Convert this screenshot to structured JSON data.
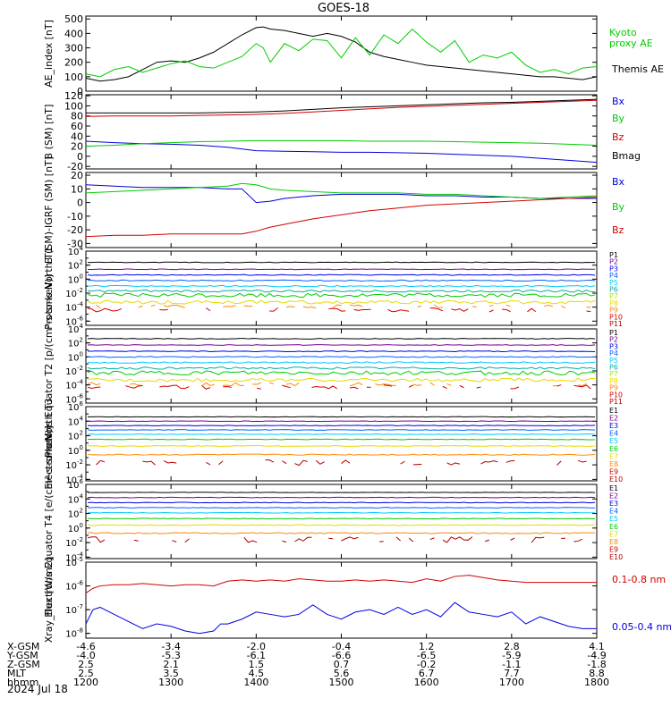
{
  "title": "GOES-18",
  "date_label": "2024 Jul 18",
  "ephemeris": {
    "rows": [
      {
        "label": "X-GSM",
        "values": [
          "-4.6",
          "-3.4",
          "-2.0",
          "-0.4",
          "1.2",
          "2.8",
          "4.1"
        ]
      },
      {
        "label": "Y-GSM",
        "values": [
          "-4.0",
          "-5.3",
          "-6.1",
          "-6.6",
          "-6.5",
          "-5.9",
          "-4.9"
        ]
      },
      {
        "label": "Z-GSM",
        "values": [
          "2.5",
          "2.1",
          "1.5",
          "0.7",
          "-0.2",
          "-1.1",
          "-1.8"
        ]
      },
      {
        "label": "MLT",
        "values": [
          "2.5",
          "3.5",
          "4.5",
          "5.6",
          "6.7",
          "7.7",
          "8.8"
        ]
      },
      {
        "label": "hhmm",
        "values": [
          "1200",
          "1300",
          "1400",
          "1500",
          "1600",
          "1700",
          "1800"
        ]
      }
    ]
  },
  "colors": {
    "black": "#000000",
    "red": "#d40000",
    "green": "#00cc00",
    "blue": "#0000e0",
    "purple": "#7a0090",
    "cyan": "#00c8ff",
    "teal": "#00b0a0",
    "lime": "#99ee00",
    "yellow": "#e8d800",
    "orange": "#ff8800",
    "darkorange": "#e05000",
    "darkred": "#b00000"
  },
  "chart_data": [
    {
      "type": "line",
      "ylabel": "AE_index [nT]",
      "yticks": [
        "500",
        "400",
        "300",
        "200",
        "100",
        "0"
      ],
      "ylim": [
        0,
        520
      ],
      "x": [
        1200,
        1210,
        1220,
        1230,
        1240,
        1250,
        1300,
        1310,
        1320,
        1330,
        1340,
        1350,
        1400,
        1405,
        1410,
        1420,
        1430,
        1440,
        1450,
        1500,
        1510,
        1520,
        1530,
        1540,
        1550,
        1600,
        1610,
        1620,
        1630,
        1640,
        1650,
        1700,
        1710,
        1720,
        1730,
        1740,
        1750,
        1800
      ],
      "series": [
        {
          "name": "Themis AE",
          "color": "#000000",
          "values": [
            90,
            70,
            80,
            100,
            150,
            200,
            210,
            200,
            230,
            270,
            330,
            390,
            440,
            445,
            430,
            420,
            400,
            380,
            400,
            380,
            340,
            270,
            240,
            220,
            200,
            180,
            170,
            160,
            150,
            140,
            130,
            120,
            110,
            100,
            100,
            90,
            80,
            100
          ]
        },
        {
          "name": "Kyoto proxy AE",
          "color": "#00cc00",
          "values": [
            120,
            100,
            150,
            170,
            130,
            160,
            190,
            210,
            170,
            160,
            200,
            240,
            330,
            300,
            200,
            330,
            280,
            360,
            350,
            230,
            370,
            250,
            390,
            330,
            430,
            340,
            270,
            350,
            200,
            250,
            230,
            270,
            180,
            130,
            150,
            120,
            160,
            170
          ]
        }
      ]
    },
    {
      "type": "line",
      "ylabel": "B (SM) [nT]",
      "yticks": [
        "120",
        "100",
        "80",
        "60",
        "40",
        "20",
        "0",
        "-20"
      ],
      "ylim": [
        -25,
        122
      ],
      "x": [
        1200,
        1220,
        1240,
        1300,
        1320,
        1340,
        1400,
        1420,
        1440,
        1500,
        1520,
        1540,
        1600,
        1620,
        1640,
        1700,
        1720,
        1740,
        1800
      ],
      "series": [
        {
          "name": "Bx",
          "color": "#0000e0",
          "values": [
            30,
            27,
            25,
            24,
            22,
            18,
            11,
            10,
            9,
            8,
            8,
            7,
            6,
            4,
            2,
            0,
            -4,
            -8,
            -12
          ]
        },
        {
          "name": "By",
          "color": "#00cc00",
          "values": [
            20,
            22,
            25,
            27,
            29,
            30,
            31,
            31,
            31,
            31,
            30,
            30,
            30,
            29,
            28,
            27,
            26,
            24,
            22
          ]
        },
        {
          "name": "Bz",
          "color": "#d40000",
          "values": [
            79,
            80,
            80,
            80,
            81,
            82,
            83,
            85,
            88,
            91,
            94,
            97,
            99,
            101,
            103,
            105,
            107,
            109,
            111
          ]
        },
        {
          "name": "Bmag",
          "color": "#000000",
          "values": [
            86,
            86,
            86,
            86,
            86,
            87,
            88,
            90,
            93,
            96,
            98,
            100,
            102,
            104,
            106,
            107,
            109,
            111,
            113
          ]
        }
      ]
    },
    {
      "type": "line",
      "ylabel": "B (SM)-IGRF (SM) [nT]",
      "yticks": [
        "20",
        "10",
        "0",
        "-10",
        "-20",
        "-30"
      ],
      "ylim": [
        -33,
        22
      ],
      "x": [
        1200,
        1220,
        1240,
        1300,
        1320,
        1340,
        1350,
        1400,
        1410,
        1420,
        1440,
        1500,
        1520,
        1540,
        1600,
        1620,
        1640,
        1700,
        1720,
        1740,
        1800
      ],
      "series": [
        {
          "name": "Bx",
          "color": "#0000e0",
          "values": [
            13,
            12,
            11,
            11,
            11,
            10,
            10,
            0,
            1,
            3,
            5,
            6,
            6,
            6,
            5,
            5,
            4,
            4,
            3,
            3,
            3
          ]
        },
        {
          "name": "By",
          "color": "#00cc00",
          "values": [
            7,
            8,
            9,
            10,
            11,
            12,
            14,
            13,
            10,
            9,
            8,
            7,
            7,
            7,
            6,
            6,
            5,
            4,
            3,
            4,
            5
          ]
        },
        {
          "name": "Bz",
          "color": "#d40000",
          "values": [
            -25,
            -24,
            -24,
            -23,
            -23,
            -23,
            -23,
            -21,
            -18,
            -16,
            -12,
            -9,
            -6,
            -4,
            -2,
            -1,
            0,
            1,
            2,
            3,
            4
          ]
        }
      ]
    },
    {
      "type": "line",
      "log_y": true,
      "ylabel": "Protons North T1",
      "yticks": [
        "10^4",
        "10^2",
        "10^0",
        "10^-2",
        "10^-4",
        "10^-6"
      ],
      "ylim_exp": [
        -6.6,
        4
      ],
      "legend": [
        {
          "name": "P1",
          "color": "#000000"
        },
        {
          "name": "P2",
          "color": "#7a0090"
        },
        {
          "name": "P3",
          "color": "#0000e0"
        },
        {
          "name": "P4",
          "color": "#0060ff"
        },
        {
          "name": "P5",
          "color": "#00c8ff"
        },
        {
          "name": "P6",
          "color": "#00b0a0"
        },
        {
          "name": "P7",
          "color": "#99ee00"
        },
        {
          "name": "P8",
          "color": "#e8d800"
        },
        {
          "name": "P9",
          "color": "#ff8800"
        },
        {
          "name": "P10",
          "color": "#d40000"
        },
        {
          "name": "P11",
          "color": "#b00000"
        }
      ],
      "series": [
        {
          "name": "P1",
          "color": "#000000",
          "level": 2.4,
          "noise": 0.05
        },
        {
          "name": "P2",
          "color": "#7a0090",
          "level": 1.4,
          "noise": 0.05
        },
        {
          "name": "P3",
          "color": "#0000e0",
          "level": 0.6,
          "noise": 0.06
        },
        {
          "name": "P4",
          "color": "#0060ff",
          "level": -0.2,
          "noise": 0.08
        },
        {
          "name": "P5",
          "color": "#00c8ff",
          "level": -1.0,
          "noise": 0.1
        },
        {
          "name": "P6",
          "color": "#00b0a0",
          "level": -1.7,
          "noise": 0.15
        },
        {
          "name": "P7",
          "color": "#00cc00",
          "level": -2.3,
          "noise": 0.3
        },
        {
          "name": "P8",
          "color": "#e8d800",
          "level": -3.3,
          "noise": 0.25
        },
        {
          "name": "P9",
          "color": "#ff8800",
          "level": -3.9,
          "noise": 0.25,
          "gappy": true
        },
        {
          "name": "P10",
          "color": "#d40000",
          "level": -4.4,
          "noise": 0.3,
          "gappy": true
        }
      ]
    },
    {
      "type": "line",
      "log_y": true,
      "ylabel": "Protons Equator T2 [p/(cm²-s-sr-keV)]",
      "yticks": [
        "10^4",
        "10^2",
        "10^0",
        "10^-2",
        "10^-4",
        "10^-6"
      ],
      "ylim_exp": [
        -6.6,
        4
      ],
      "legend": [
        {
          "name": "P1",
          "color": "#000000"
        },
        {
          "name": "P2",
          "color": "#7a0090"
        },
        {
          "name": "P3",
          "color": "#0000e0"
        },
        {
          "name": "P4",
          "color": "#0060ff"
        },
        {
          "name": "P5",
          "color": "#00c8ff"
        },
        {
          "name": "P6",
          "color": "#00b0a0"
        },
        {
          "name": "P7",
          "color": "#99ee00"
        },
        {
          "name": "P8",
          "color": "#e8d800"
        },
        {
          "name": "P9",
          "color": "#ff8800"
        },
        {
          "name": "P10",
          "color": "#d40000"
        },
        {
          "name": "P11",
          "color": "#b00000"
        }
      ],
      "series": [
        {
          "name": "P1",
          "color": "#000000",
          "level": 2.6,
          "noise": 0.05
        },
        {
          "name": "P2",
          "color": "#7a0090",
          "level": 1.7,
          "noise": 0.05
        },
        {
          "name": "P3",
          "color": "#0000e0",
          "level": 0.8,
          "noise": 0.06
        },
        {
          "name": "P4",
          "color": "#0060ff",
          "level": 0.0,
          "noise": 0.08
        },
        {
          "name": "P5",
          "color": "#00c8ff",
          "level": -0.8,
          "noise": 0.1
        },
        {
          "name": "P6",
          "color": "#00b0a0",
          "level": -1.6,
          "noise": 0.15
        },
        {
          "name": "P7",
          "color": "#00cc00",
          "level": -2.3,
          "noise": 0.3
        },
        {
          "name": "P8",
          "color": "#e8d800",
          "level": -3.3,
          "noise": 0.25
        },
        {
          "name": "P9",
          "color": "#ff8800",
          "level": -3.9,
          "noise": 0.25,
          "gappy": true
        },
        {
          "name": "P10",
          "color": "#d40000",
          "level": -4.3,
          "noise": 0.3,
          "gappy": true
        }
      ]
    },
    {
      "type": "line",
      "log_y": true,
      "ylabel": "Electrons North T3",
      "yticks": [
        "10^6",
        "10^4",
        "10^2",
        "10^0",
        "10^-2",
        "10^-4"
      ],
      "ylim_exp": [
        -4.2,
        6
      ],
      "legend": [
        {
          "name": "E1",
          "color": "#000000"
        },
        {
          "name": "E2",
          "color": "#7a0090"
        },
        {
          "name": "E3",
          "color": "#0000e0"
        },
        {
          "name": "E4",
          "color": "#0060ff"
        },
        {
          "name": "E5",
          "color": "#00c8ff"
        },
        {
          "name": "E6",
          "color": "#00cc00"
        },
        {
          "name": "E7",
          "color": "#e8d800"
        },
        {
          "name": "E8",
          "color": "#ff8800"
        },
        {
          "name": "E9",
          "color": "#d40000"
        },
        {
          "name": "E10",
          "color": "#b00000"
        }
      ],
      "series": [
        {
          "name": "E1",
          "color": "#000000",
          "level": 4.6,
          "noise": 0.03
        },
        {
          "name": "E2",
          "color": "#7a0090",
          "level": 4.0,
          "noise": 0.04
        },
        {
          "name": "E3",
          "color": "#0000e0",
          "level": 3.4,
          "noise": 0.04
        },
        {
          "name": "E4",
          "color": "#0060ff",
          "level": 2.8,
          "noise": 0.05
        },
        {
          "name": "E5",
          "color": "#00c8ff",
          "level": 2.2,
          "noise": 0.05
        },
        {
          "name": "E6",
          "color": "#00cc00",
          "level": 1.5,
          "noise": 0.05
        },
        {
          "name": "E7",
          "color": "#e8d800",
          "level": 0.6,
          "noise": 0.06
        },
        {
          "name": "E8",
          "color": "#ff8800",
          "level": -0.6,
          "noise": 0.08
        },
        {
          "name": "E9",
          "color": "#b00000",
          "level": -1.7,
          "noise": 0.4,
          "gappy": true
        }
      ]
    },
    {
      "type": "line",
      "log_y": true,
      "ylabel": "Electrons Equator T4 [e/(cm²-s-sr-keV)]",
      "yticks": [
        "10^6",
        "10^4",
        "10^2",
        "10^0",
        "10^-2",
        "10^-4"
      ],
      "ylim_exp": [
        -4.2,
        6
      ],
      "legend": [
        {
          "name": "E1",
          "color": "#000000"
        },
        {
          "name": "E2",
          "color": "#7a0090"
        },
        {
          "name": "E3",
          "color": "#0000e0"
        },
        {
          "name": "E4",
          "color": "#0060ff"
        },
        {
          "name": "E5",
          "color": "#00c8ff"
        },
        {
          "name": "E6",
          "color": "#00cc00"
        },
        {
          "name": "E7",
          "color": "#e8d800"
        },
        {
          "name": "E8",
          "color": "#ff8800"
        },
        {
          "name": "E9",
          "color": "#d40000"
        },
        {
          "name": "E10",
          "color": "#b00000"
        }
      ],
      "series": [
        {
          "name": "E1",
          "color": "#000000",
          "level": 4.9,
          "noise": 0.03
        },
        {
          "name": "E2",
          "color": "#7a0090",
          "level": 4.2,
          "noise": 0.04
        },
        {
          "name": "E3",
          "color": "#0000e0",
          "level": 3.5,
          "noise": 0.04
        },
        {
          "name": "E4",
          "color": "#0060ff",
          "level": 2.8,
          "noise": 0.05
        },
        {
          "name": "E5",
          "color": "#00c8ff",
          "level": 2.1,
          "noise": 0.05
        },
        {
          "name": "E6",
          "color": "#00cc00",
          "level": 1.3,
          "noise": 0.05
        },
        {
          "name": "E7",
          "color": "#e8d800",
          "level": 0.4,
          "noise": 0.06
        },
        {
          "name": "E8",
          "color": "#ff8800",
          "level": -0.7,
          "noise": 0.08
        },
        {
          "name": "E9",
          "color": "#b00000",
          "level": -1.6,
          "noise": 0.4,
          "gappy": true
        }
      ]
    },
    {
      "type": "line",
      "log_y": true,
      "ylabel": "Xray_flux [W/m2]",
      "yticks": [
        "10^-5",
        "10^-6",
        "10^-7",
        "10^-8"
      ],
      "ylim_exp": [
        -8.2,
        -5
      ],
      "x": [
        1200,
        1205,
        1210,
        1220,
        1230,
        1240,
        1250,
        1300,
        1310,
        1320,
        1330,
        1335,
        1340,
        1350,
        1400,
        1410,
        1420,
        1430,
        1440,
        1450,
        1500,
        1510,
        1520,
        1530,
        1540,
        1550,
        1600,
        1610,
        1620,
        1630,
        1640,
        1650,
        1700,
        1710,
        1720,
        1730,
        1740,
        1750,
        1800
      ],
      "series": [
        {
          "name": "0.1-0.8 nm",
          "color": "#d40000",
          "values": [
            -6.3,
            -6.1,
            -6.0,
            -5.95,
            -5.95,
            -5.9,
            -5.95,
            -6.0,
            -5.95,
            -5.95,
            -6.0,
            -5.9,
            -5.8,
            -5.75,
            -5.8,
            -5.75,
            -5.8,
            -5.7,
            -5.75,
            -5.8,
            -5.8,
            -5.75,
            -5.8,
            -5.75,
            -5.8,
            -5.85,
            -5.7,
            -5.8,
            -5.6,
            -5.55,
            -5.65,
            -5.75,
            -5.8,
            -5.85,
            -5.85,
            -5.85,
            -5.85,
            -5.85,
            -5.85
          ]
        },
        {
          "name": "0.05-0.4 nm",
          "color": "#0000e0",
          "values": [
            -7.6,
            -7.0,
            -6.9,
            -7.2,
            -7.5,
            -7.8,
            -7.6,
            -7.7,
            -7.9,
            -8.0,
            -7.9,
            -7.6,
            -7.6,
            -7.4,
            -7.1,
            -7.2,
            -7.3,
            -7.2,
            -6.8,
            -7.2,
            -7.4,
            -7.1,
            -7.0,
            -7.2,
            -6.9,
            -7.2,
            -7.0,
            -7.3,
            -6.7,
            -7.1,
            -7.2,
            -7.3,
            -7.1,
            -7.6,
            -7.3,
            -7.5,
            -7.7,
            -7.8,
            -7.8
          ]
        }
      ]
    }
  ]
}
